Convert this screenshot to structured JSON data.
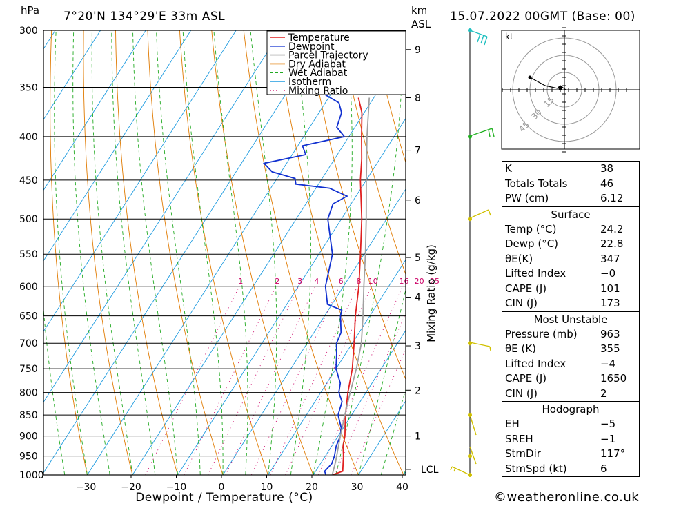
{
  "header": {
    "y_unit": "hPa",
    "location": "7°20'N  134°29'E  33m  ASL",
    "km_label": "km",
    "asl_label": "ASL",
    "datetime": "15.07.2022  00GMT  (Base: 00)"
  },
  "legend": [
    "Temperature",
    "Dewpoint",
    "Parcel Trajectory",
    "Dry Adiabat",
    "Wet Adiabat",
    "Isotherm",
    "Mixing Ratio"
  ],
  "colors": {
    "temperature": "#e02020",
    "dewpoint": "#1030d0",
    "parcel": "#a0a0a0",
    "dry_adiabat": "#e07a00",
    "wet_adiabat": "#22aa22",
    "isotherm": "#1e9be0",
    "mixing_ratio": "#cc0066"
  },
  "chart_data": {
    "type": "line",
    "xlabel": "Dewpoint / Temperature (°C)",
    "ylabel_right": "Mixing Ratio (g/kg)",
    "x_ticks": [
      -30,
      -20,
      -10,
      0,
      10,
      20,
      30,
      40
    ],
    "pressure_levels": [
      300,
      350,
      400,
      450,
      500,
      550,
      600,
      650,
      700,
      750,
      800,
      850,
      900,
      950,
      1000
    ],
    "km_ticks": [
      {
        "km": "1",
        "p": 900
      },
      {
        "km": "2",
        "p": 795
      },
      {
        "km": "3",
        "p": 705
      },
      {
        "km": "4",
        "p": 618
      },
      {
        "km": "5",
        "p": 555
      },
      {
        "km": "6",
        "p": 475
      },
      {
        "km": "7",
        "p": 415
      },
      {
        "km": "8",
        "p": 360
      },
      {
        "km": "9",
        "p": 316
      }
    ],
    "lcl": {
      "label": "LCL",
      "p": 985
    },
    "mixing_ratio_labels": [
      "1",
      "2",
      "3",
      "4",
      "6",
      "8",
      "10",
      "16",
      "20",
      "25"
    ],
    "series": [
      {
        "name": "Temperature",
        "points": [
          [
            1000,
            24.2
          ],
          [
            990,
            26
          ],
          [
            970,
            25
          ],
          [
            950,
            24
          ],
          [
            925,
            22.5
          ],
          [
            900,
            21.5
          ],
          [
            850,
            18.6
          ],
          [
            800,
            16
          ],
          [
            750,
            13.6
          ],
          [
            700,
            10.4
          ],
          [
            650,
            6.8
          ],
          [
            600,
            3.4
          ],
          [
            550,
            -0.8
          ],
          [
            500,
            -5.5
          ],
          [
            450,
            -11.3
          ],
          [
            425,
            -14
          ],
          [
            400,
            -17.2
          ],
          [
            375,
            -20.5
          ],
          [
            360,
            -23.4
          ]
        ]
      },
      {
        "name": "Dewpoint",
        "points": [
          [
            1000,
            22.8
          ],
          [
            990,
            22
          ],
          [
            970,
            22.5
          ],
          [
            950,
            22
          ],
          [
            925,
            21
          ],
          [
            900,
            20.5
          ],
          [
            880,
            19.5
          ],
          [
            850,
            17
          ],
          [
            820,
            16
          ],
          [
            800,
            14
          ],
          [
            780,
            13
          ],
          [
            750,
            10
          ],
          [
            720,
            8
          ],
          [
            700,
            6.5
          ],
          [
            680,
            6
          ],
          [
            650,
            3.5
          ],
          [
            640,
            3
          ],
          [
            630,
            -1
          ],
          [
            600,
            -4
          ],
          [
            550,
            -7
          ],
          [
            500,
            -13
          ],
          [
            480,
            -14
          ],
          [
            470,
            -12
          ],
          [
            460,
            -17
          ],
          [
            455,
            -25
          ],
          [
            448,
            -26
          ],
          [
            440,
            -32
          ],
          [
            430,
            -35
          ],
          [
            420,
            -27
          ],
          [
            410,
            -29
          ],
          [
            400,
            -21
          ],
          [
            390,
            -24
          ],
          [
            375,
            -25
          ],
          [
            365,
            -27
          ],
          [
            350,
            -35
          ],
          [
            340,
            -38
          ],
          [
            330,
            -42
          ],
          [
            310,
            -45
          ],
          [
            300,
            -47
          ]
        ]
      },
      {
        "name": "Parcel Trajectory",
        "points": [
          [
            1000,
            24.2
          ],
          [
            963,
            23
          ],
          [
            900,
            20.5
          ],
          [
            850,
            18.5
          ],
          [
            800,
            16.5
          ],
          [
            750,
            14.5
          ],
          [
            700,
            12
          ],
          [
            650,
            8.5
          ],
          [
            600,
            4.5
          ],
          [
            550,
            0.3
          ],
          [
            500,
            -4.5
          ],
          [
            450,
            -10
          ],
          [
            400,
            -16
          ],
          [
            360,
            -21
          ]
        ]
      }
    ]
  },
  "hodograph": {
    "unit": "kt",
    "rings": [
      "15",
      "30",
      "45"
    ]
  },
  "indices": [
    {
      "label": "K",
      "value": "38"
    },
    {
      "label": "Totals Totals",
      "value": "46"
    },
    {
      "label": "PW (cm)",
      "value": "6.12"
    }
  ],
  "surface": {
    "title": "Surface",
    "rows": [
      {
        "label": "Temp (°C)",
        "value": "24.2"
      },
      {
        "label": "Dewp (°C)",
        "value": "22.8"
      },
      {
        "label": "θE(K)",
        "value": "347"
      },
      {
        "label": "Lifted Index",
        "value": "−0"
      },
      {
        "label": "CAPE (J)",
        "value": "101"
      },
      {
        "label": "CIN (J)",
        "value": "173"
      }
    ]
  },
  "most_unstable": {
    "title": "Most Unstable",
    "rows": [
      {
        "label": "Pressure (mb)",
        "value": "963"
      },
      {
        "label": "θE (K)",
        "value": "355"
      },
      {
        "label": "Lifted Index",
        "value": "−4"
      },
      {
        "label": "CAPE (J)",
        "value": "1650"
      },
      {
        "label": "CIN (J)",
        "value": "2"
      }
    ]
  },
  "hodograph_box": {
    "title": "Hodograph",
    "rows": [
      {
        "label": "EH",
        "value": "−5"
      },
      {
        "label": "SREH",
        "value": "−1"
      },
      {
        "label": "StmDir",
        "value": "117°"
      },
      {
        "label": "StmSpd (kt)",
        "value": "6"
      }
    ]
  },
  "footer": {
    "copyright": "©weatheronline.co.uk"
  }
}
